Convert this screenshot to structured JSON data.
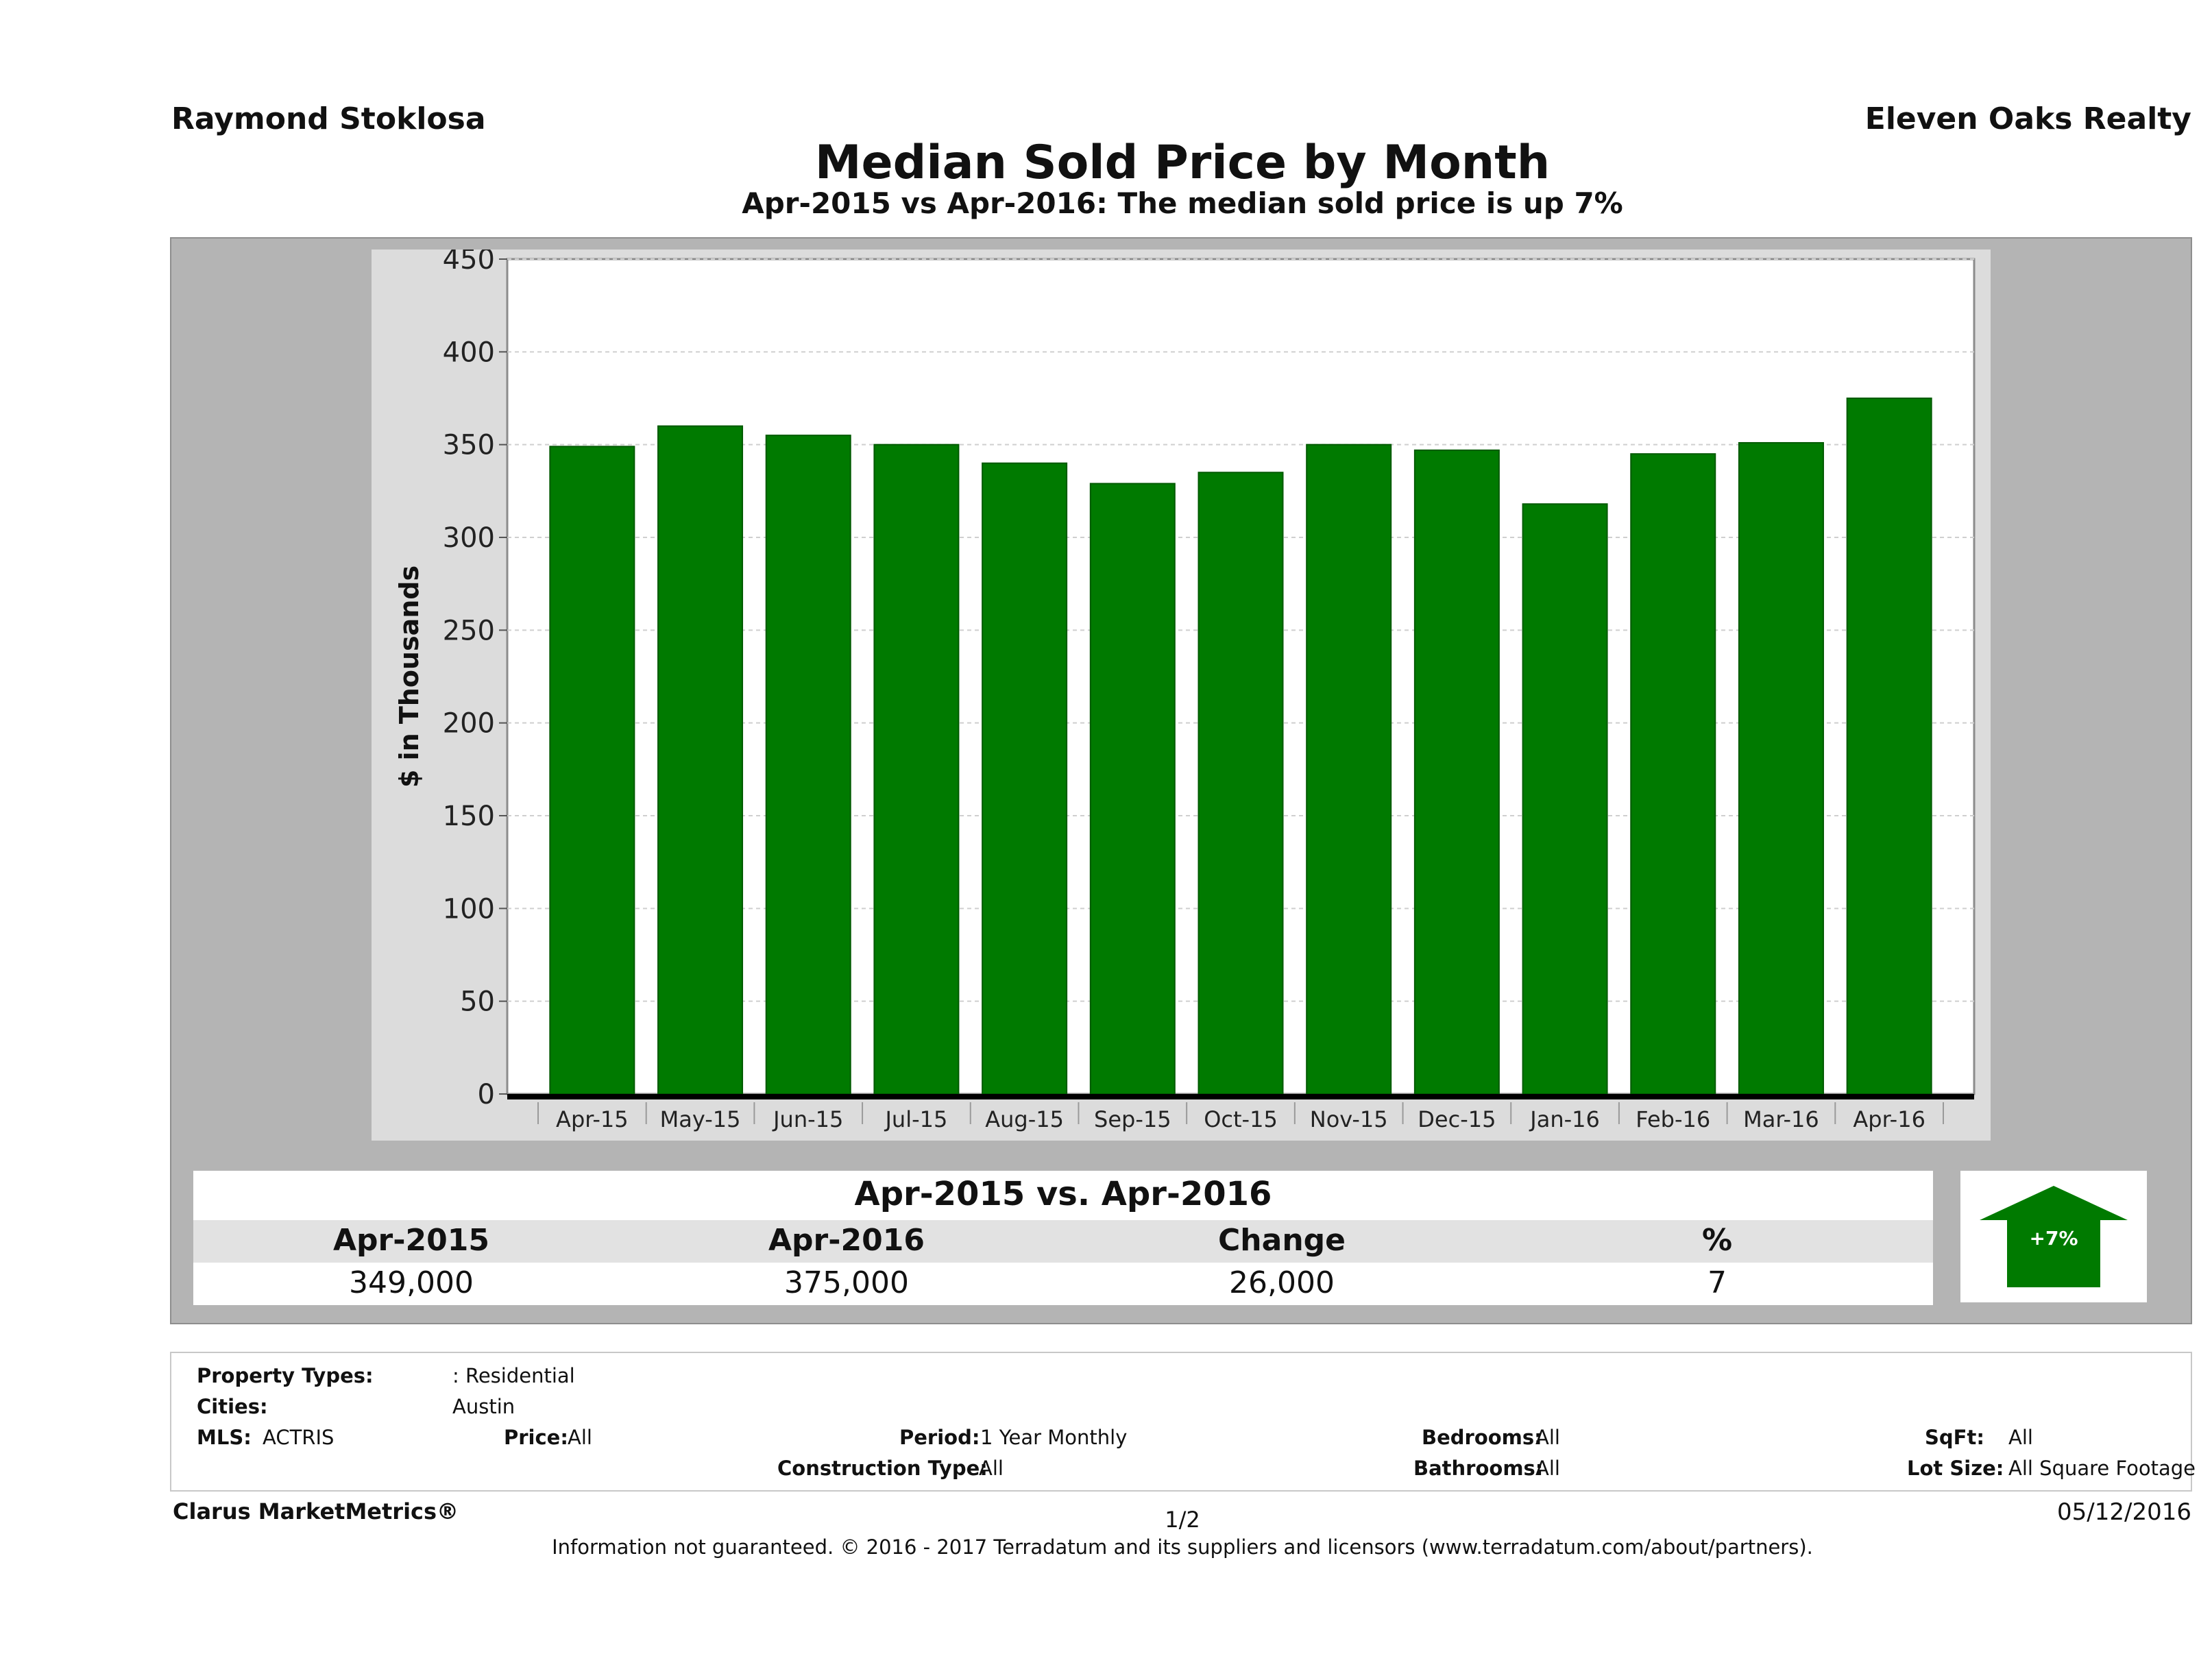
{
  "header": {
    "agent": "Raymond Stoklosa",
    "broker": "Eleven Oaks Realty",
    "title": "Median Sold Price by Month",
    "subtitle": "Apr-2015 vs Apr-2016: The median sold price is up 7%"
  },
  "chart_data": {
    "type": "bar",
    "categories": [
      "Apr-15",
      "May-15",
      "Jun-15",
      "Jul-15",
      "Aug-15",
      "Sep-15",
      "Oct-15",
      "Nov-15",
      "Dec-15",
      "Jan-16",
      "Feb-16",
      "Mar-16",
      "Apr-16"
    ],
    "values": [
      349,
      360,
      355,
      350,
      340,
      329,
      335,
      350,
      347,
      318,
      345,
      351,
      375
    ],
    "ylabel": "$ in Thousands",
    "xlabel": "",
    "ylim": [
      0,
      450
    ],
    "yticks": [
      0,
      50,
      100,
      150,
      200,
      250,
      300,
      350,
      400,
      450
    ],
    "grid": true,
    "bar_color": "#007a00"
  },
  "summary": {
    "title": "Apr-2015 vs. Apr-2016",
    "headers": [
      "Apr-2015",
      "Apr-2016",
      "Change",
      "%"
    ],
    "values": [
      "349,000",
      "375,000",
      "26,000",
      "7"
    ],
    "arrow_label": "+7%",
    "arrow_color": "#007a00"
  },
  "criteria": {
    "property_types_label": "Property Types:",
    "property_types_value": ": Residential",
    "cities_label": "Cities:",
    "cities_value": "Austin",
    "mls_label": "MLS:",
    "mls_value": "ACTRIS",
    "price_label": "Price:",
    "price_value": "All",
    "period_label": "Period:",
    "period_value": "1 Year Monthly",
    "construction_label": "Construction Type:",
    "construction_value": "All",
    "bedrooms_label": "Bedrooms:",
    "bedrooms_value": "All",
    "bathrooms_label": "Bathrooms:",
    "bathrooms_value": "All",
    "sqft_label": "SqFt:",
    "sqft_value": "All",
    "lot_label": "Lot Size:",
    "lot_value": "All Square Footage"
  },
  "footer": {
    "brand": "Clarus MarketMetrics®",
    "page": "1/2",
    "date": "05/12/2016",
    "disclaimer": "Information not guaranteed. © 2016 - 2017 Terradatum and its suppliers and licensors (www.terradatum.com/about/partners)."
  }
}
